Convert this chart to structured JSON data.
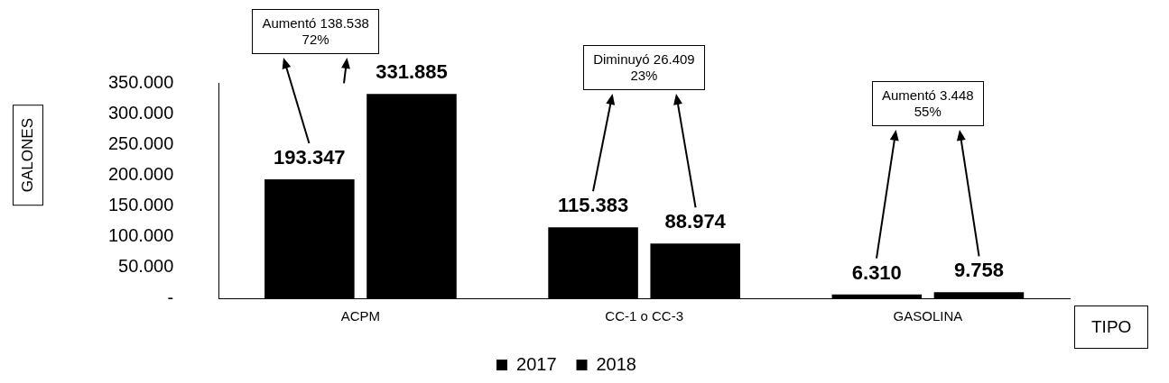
{
  "chart_data": {
    "type": "bar",
    "categories": [
      "ACPM",
      "CC-1 o CC-3",
      "GASOLINA"
    ],
    "series": [
      {
        "name": "2017",
        "color": "#000000",
        "values": [
          193347,
          115383,
          6310
        ],
        "value_labels": [
          "193.347",
          "115.383",
          "6.310"
        ]
      },
      {
        "name": "2018",
        "color": "#000000",
        "values": [
          331885,
          88974,
          9758
        ],
        "value_labels": [
          "331.885",
          "88.974",
          "9.758"
        ]
      }
    ],
    "ylim": [
      0,
      350000
    ],
    "yticks": [
      {
        "value": 0,
        "label": "-"
      },
      {
        "value": 50000,
        "label": "50.000"
      },
      {
        "value": 100000,
        "label": "100.000"
      },
      {
        "value": 150000,
        "label": "150.000"
      },
      {
        "value": 200000,
        "label": "200.000"
      },
      {
        "value": 250000,
        "label": "250.000"
      },
      {
        "value": 300000,
        "label": "300.000"
      },
      {
        "value": 350000,
        "label": "350.000"
      }
    ],
    "ylabel": "GALONES",
    "xlabel": "TIPO",
    "legend": "bottom",
    "grid": false,
    "annotations": [
      "Aumentó 138.538\n72%",
      "Diminuyó 26.409\n23%",
      "Aumentó 3.448\n55%"
    ]
  }
}
